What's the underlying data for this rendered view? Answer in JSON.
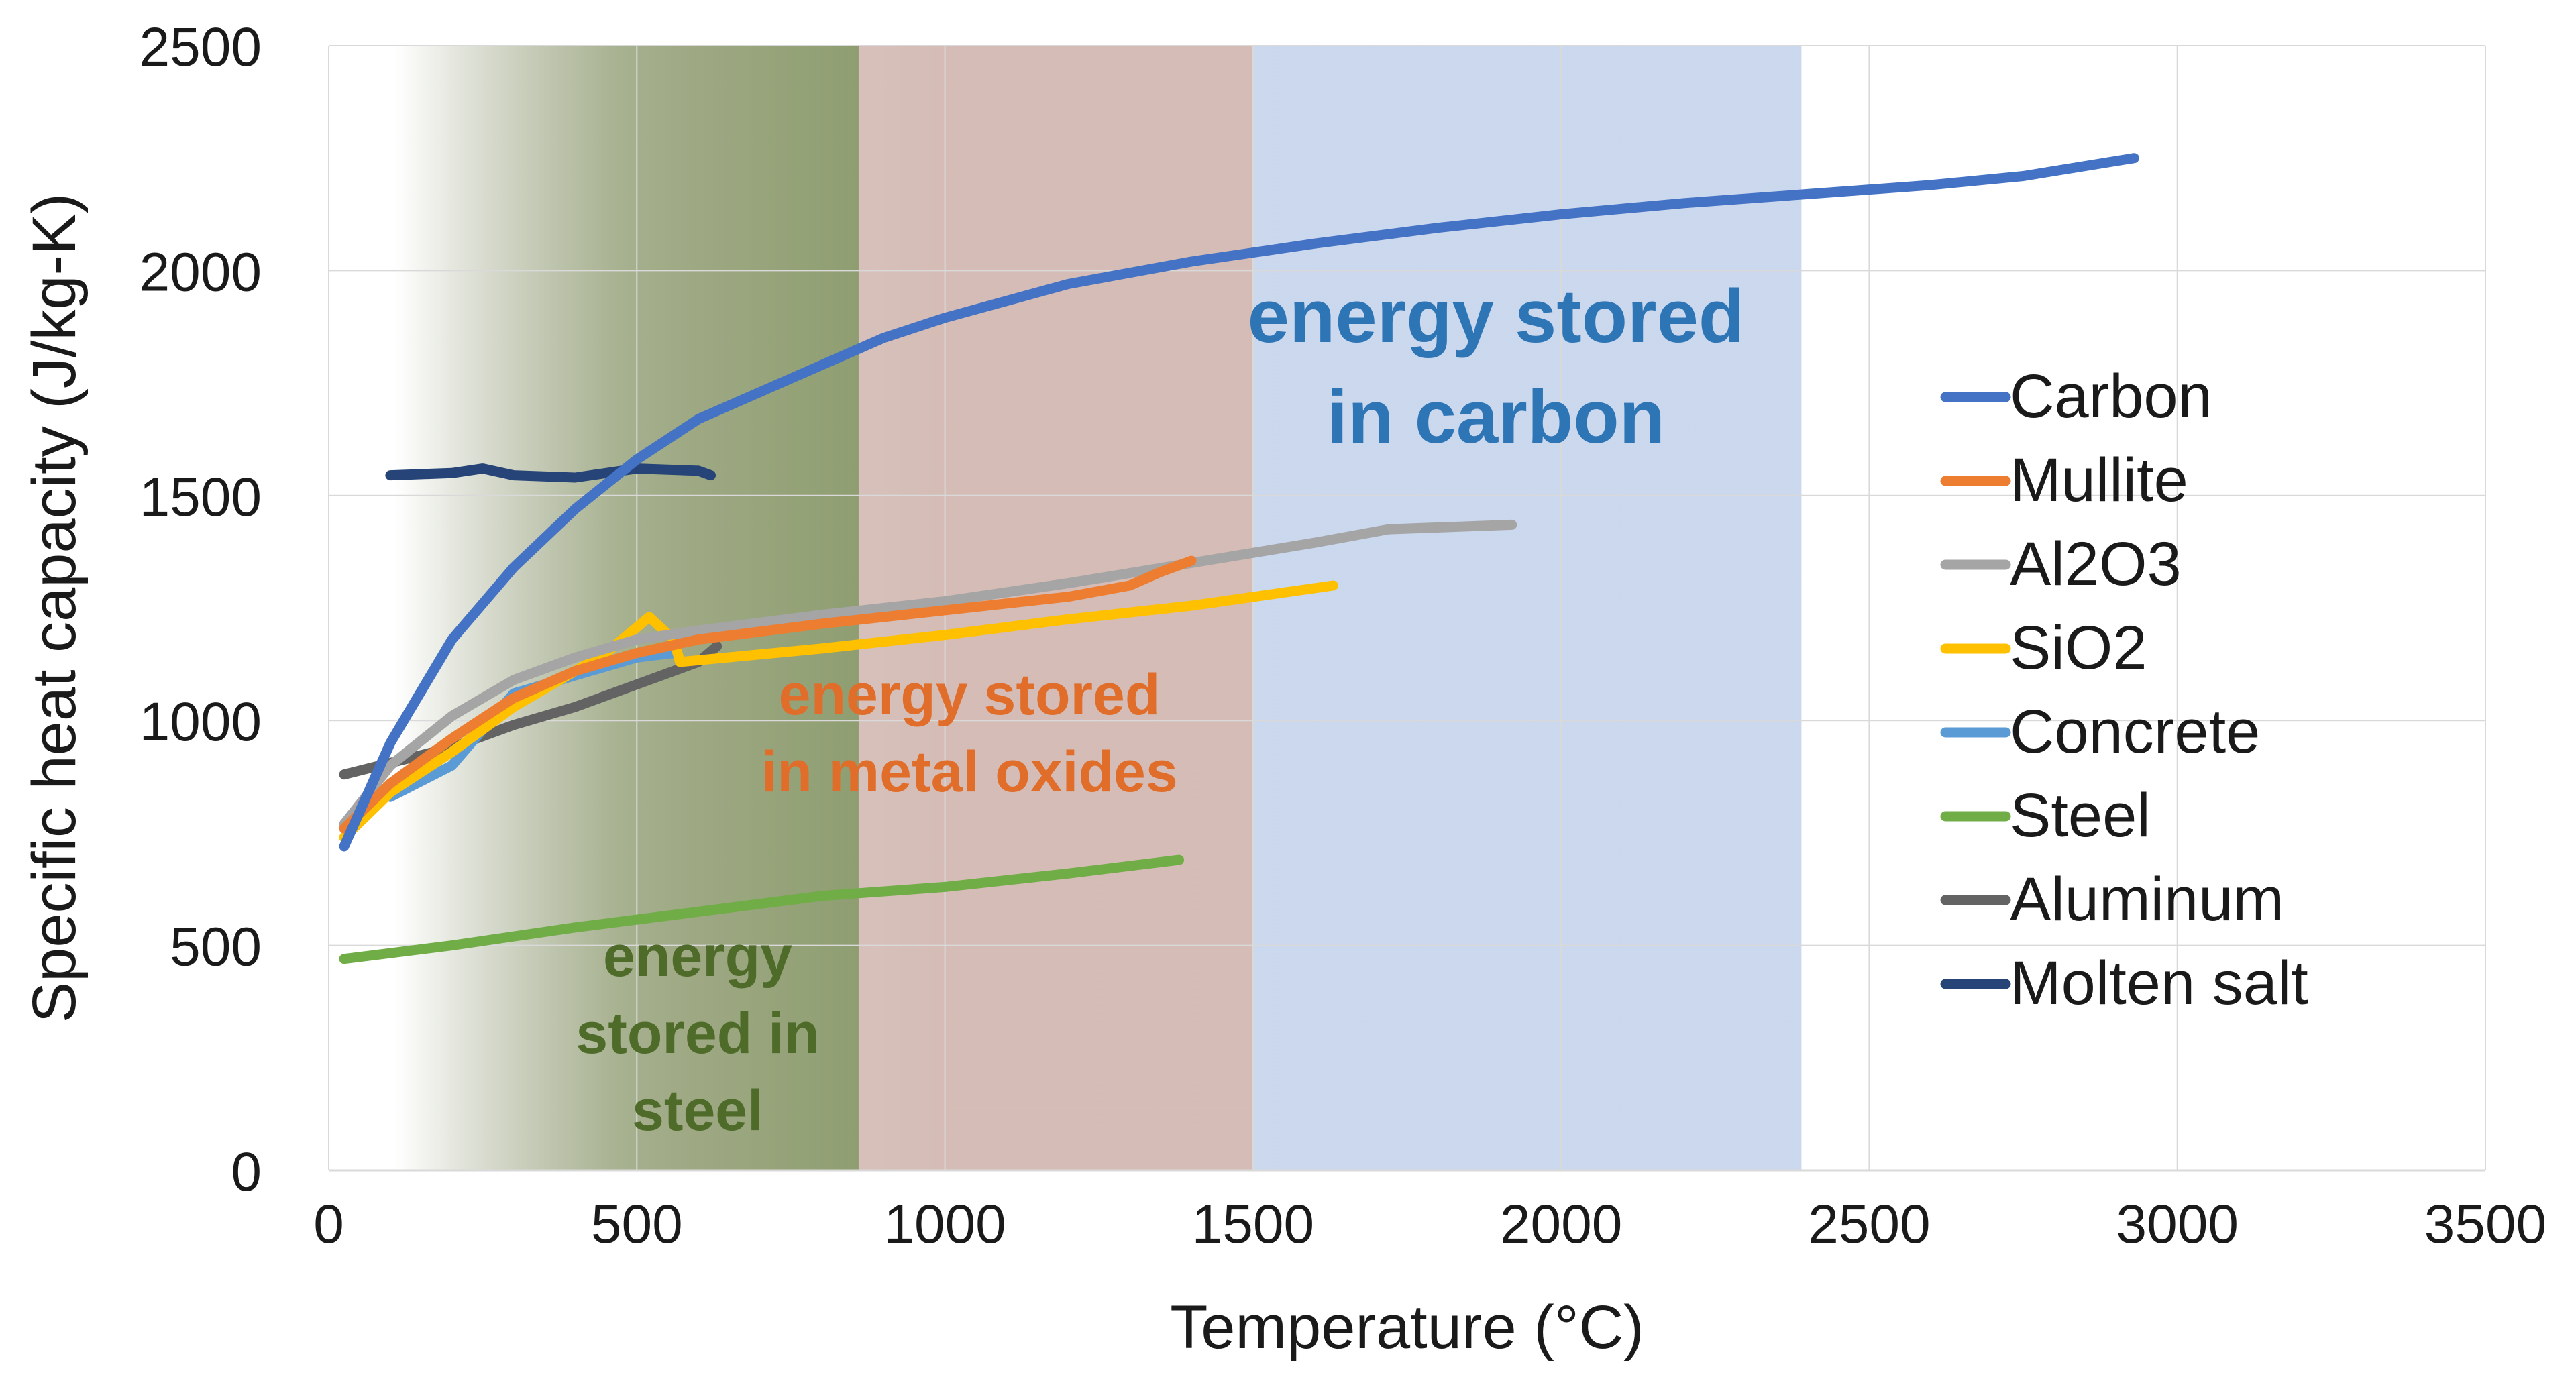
{
  "chart_data": {
    "type": "line",
    "xlabel": "Temperature (°C)",
    "ylabel": "Specific heat capacity (J/kg-K)",
    "xlim": [
      0,
      3500
    ],
    "ylim": [
      0,
      2500
    ],
    "x_ticks": [
      0,
      500,
      1000,
      1500,
      2000,
      2500,
      3000,
      3500
    ],
    "y_ticks": [
      0,
      500,
      1000,
      1500,
      2000,
      2500
    ],
    "x_tick_labels": [
      "0",
      "500",
      "1000",
      "1500",
      "2000",
      "2500",
      "3000",
      "3500"
    ],
    "y_tick_labels": [
      "0",
      "500",
      "1000",
      "1500",
      "2000",
      "2500"
    ],
    "grid": true,
    "legend_position": "right",
    "series": [
      {
        "name": "Carbon",
        "color": "#4472C4",
        "points": [
          [
            25,
            720
          ],
          [
            100,
            950
          ],
          [
            200,
            1180
          ],
          [
            300,
            1340
          ],
          [
            400,
            1470
          ],
          [
            500,
            1580
          ],
          [
            600,
            1670
          ],
          [
            700,
            1730
          ],
          [
            800,
            1790
          ],
          [
            900,
            1850
          ],
          [
            1000,
            1895
          ],
          [
            1200,
            1970
          ],
          [
            1400,
            2020
          ],
          [
            1600,
            2060
          ],
          [
            1800,
            2095
          ],
          [
            2000,
            2125
          ],
          [
            2200,
            2150
          ],
          [
            2400,
            2170
          ],
          [
            2600,
            2190
          ],
          [
            2750,
            2210
          ],
          [
            2930,
            2250
          ]
        ]
      },
      {
        "name": "Mullite",
        "color": "#ED7D31",
        "points": [
          [
            25,
            760
          ],
          [
            100,
            860
          ],
          [
            200,
            960
          ],
          [
            300,
            1050
          ],
          [
            400,
            1110
          ],
          [
            500,
            1150
          ],
          [
            600,
            1180
          ],
          [
            800,
            1215
          ],
          [
            1000,
            1245
          ],
          [
            1200,
            1275
          ],
          [
            1300,
            1300
          ],
          [
            1350,
            1330
          ],
          [
            1400,
            1355
          ]
        ]
      },
      {
        "name": "Al2O3",
        "color": "#A5A5A5",
        "points": [
          [
            25,
            770
          ],
          [
            100,
            900
          ],
          [
            200,
            1010
          ],
          [
            300,
            1090
          ],
          [
            400,
            1140
          ],
          [
            500,
            1180
          ],
          [
            600,
            1200
          ],
          [
            800,
            1235
          ],
          [
            1000,
            1265
          ],
          [
            1200,
            1305
          ],
          [
            1400,
            1350
          ],
          [
            1600,
            1395
          ],
          [
            1720,
            1425
          ],
          [
            1920,
            1435
          ]
        ]
      },
      {
        "name": "SiO2",
        "color": "#FFC000",
        "points": [
          [
            25,
            740
          ],
          [
            100,
            840
          ],
          [
            200,
            930
          ],
          [
            300,
            1030
          ],
          [
            400,
            1110
          ],
          [
            450,
            1150
          ],
          [
            520,
            1230
          ],
          [
            560,
            1180
          ],
          [
            570,
            1130
          ],
          [
            800,
            1160
          ],
          [
            1000,
            1190
          ],
          [
            1200,
            1225
          ],
          [
            1400,
            1255
          ],
          [
            1630,
            1300
          ]
        ]
      },
      {
        "name": "Concrete",
        "color": "#5B9BD5",
        "points": [
          [
            100,
            830
          ],
          [
            200,
            900
          ],
          [
            300,
            1060
          ],
          [
            400,
            1100
          ],
          [
            500,
            1140
          ],
          [
            560,
            1150
          ]
        ]
      },
      {
        "name": "Steel",
        "color": "#70AD47",
        "points": [
          [
            25,
            470
          ],
          [
            200,
            500
          ],
          [
            400,
            540
          ],
          [
            600,
            575
          ],
          [
            800,
            610
          ],
          [
            1000,
            630
          ],
          [
            1200,
            660
          ],
          [
            1380,
            690
          ]
        ]
      },
      {
        "name": "Aluminum",
        "color": "#636363",
        "points": [
          [
            25,
            880
          ],
          [
            200,
            940
          ],
          [
            300,
            990
          ],
          [
            400,
            1030
          ],
          [
            500,
            1080
          ],
          [
            600,
            1130
          ],
          [
            630,
            1165
          ]
        ]
      },
      {
        "name": "Molten salt",
        "color": "#264478",
        "points": [
          [
            100,
            1545
          ],
          [
            200,
            1550
          ],
          [
            250,
            1560
          ],
          [
            300,
            1545
          ],
          [
            400,
            1540
          ],
          [
            500,
            1560
          ],
          [
            600,
            1555
          ],
          [
            620,
            1545
          ]
        ]
      }
    ],
    "regions": [
      {
        "name": "carbon",
        "x_range": [
          0,
          2390
        ],
        "color": "#4472C4",
        "label_lines": [
          "energy stored",
          "in carbon"
        ],
        "label_color": "#2E75B6"
      },
      {
        "name": "metal-oxides",
        "x_range": [
          0,
          1500
        ],
        "color": "#ED7D31",
        "label_lines": [
          "energy stored",
          "in metal oxides"
        ],
        "label_color": "#E06E2A"
      },
      {
        "name": "steel",
        "x_range": [
          0,
          860
        ],
        "color": "#548235",
        "label_lines": [
          "energy",
          "stored in",
          "steel"
        ],
        "label_color": "#4F6B2A"
      }
    ]
  }
}
